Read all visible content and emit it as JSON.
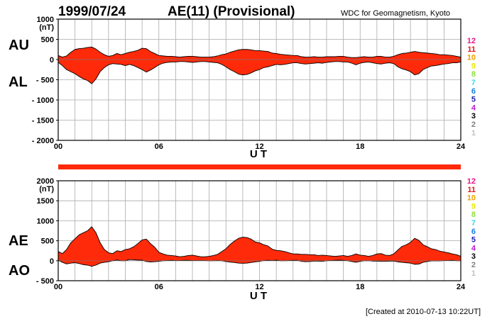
{
  "header": {
    "date": "1999/07/24",
    "title": "AE(11) (Provisional)",
    "source": "WDC for Geomagnetism, Kyoto"
  },
  "footer": {
    "created": "[Created at 2010-07-13 10:22UT]"
  },
  "station_counts": {
    "labels": [
      "12",
      "11",
      "10",
      "9",
      "8",
      "7",
      "6",
      "5",
      "4",
      "3",
      "2",
      "1"
    ],
    "colors": [
      "#e8178a",
      "#e0161a",
      "#f0a000",
      "#e8e800",
      "#90e040",
      "#40d8e8",
      "#1880e0",
      "#2020b0",
      "#c018d0",
      "#000000",
      "#808080",
      "#c0c0c0"
    ]
  },
  "chart_data": [
    {
      "id": "au-al",
      "type": "area",
      "units_label": "(nT)",
      "upper_series_label": "AU",
      "lower_series_label": "AL",
      "xlabel": "U T",
      "xlim": [
        0,
        24
      ],
      "ylim": [
        -2000,
        1000
      ],
      "x_ticks": [
        0,
        6,
        12,
        18,
        24
      ],
      "x_tick_labels": [
        "00",
        "06",
        "12",
        "18",
        "24"
      ],
      "y_ticks": [
        1000,
        500,
        0,
        -500,
        -1000,
        -1500,
        -2000
      ],
      "y_tick_labels": [
        "1000",
        "500",
        "0",
        "- 500",
        "- 1000",
        "- 1500",
        "- 2000"
      ],
      "grid": true,
      "fill_color": "#ff2a0a",
      "time_hours": [
        0,
        0.25,
        0.5,
        0.75,
        1,
        1.25,
        1.5,
        1.75,
        2,
        2.25,
        2.5,
        2.75,
        3,
        3.25,
        3.5,
        3.75,
        4,
        4.25,
        4.5,
        4.75,
        5,
        5.25,
        5.5,
        5.75,
        6,
        6.25,
        6.5,
        6.75,
        7,
        7.25,
        7.5,
        7.75,
        8,
        8.25,
        8.5,
        8.75,
        9,
        9.25,
        9.5,
        9.75,
        10,
        10.25,
        10.5,
        10.75,
        11,
        11.25,
        11.5,
        11.75,
        12,
        12.25,
        12.5,
        12.75,
        13,
        13.25,
        13.5,
        13.75,
        14,
        14.25,
        14.5,
        14.75,
        15,
        15.25,
        15.5,
        15.75,
        16,
        16.25,
        16.5,
        16.75,
        17,
        17.25,
        17.5,
        17.75,
        18,
        18.25,
        18.5,
        18.75,
        19,
        19.25,
        19.5,
        19.75,
        20,
        20.25,
        20.5,
        20.75,
        21,
        21.25,
        21.5,
        21.75,
        22,
        22.25,
        22.5,
        22.75,
        23,
        23.25,
        23.5,
        23.75,
        24
      ],
      "au_nT": [
        100,
        60,
        90,
        180,
        250,
        270,
        280,
        300,
        310,
        260,
        180,
        120,
        80,
        100,
        150,
        120,
        150,
        180,
        200,
        230,
        280,
        270,
        200,
        150,
        100,
        90,
        80,
        80,
        70,
        60,
        70,
        80,
        80,
        70,
        60,
        60,
        60,
        70,
        90,
        120,
        140,
        180,
        210,
        240,
        250,
        250,
        240,
        220,
        220,
        210,
        200,
        160,
        150,
        130,
        120,
        110,
        100,
        100,
        70,
        60,
        60,
        70,
        60,
        60,
        70,
        70,
        70,
        80,
        80,
        60,
        50,
        50,
        60,
        70,
        60,
        60,
        80,
        80,
        60,
        60,
        80,
        120,
        150,
        160,
        180,
        200,
        180,
        170,
        160,
        150,
        140,
        120,
        120,
        110,
        100,
        80,
        60
      ],
      "al_nT": [
        -70,
        -150,
        -250,
        -300,
        -350,
        -420,
        -480,
        -520,
        -600,
        -480,
        -300,
        -200,
        -130,
        -100,
        -110,
        -120,
        -150,
        -120,
        -150,
        -200,
        -250,
        -310,
        -260,
        -200,
        -130,
        -90,
        -70,
        -60,
        -60,
        -50,
        -50,
        -60,
        -70,
        -60,
        -50,
        -50,
        -60,
        -70,
        -80,
        -120,
        -180,
        -250,
        -300,
        -360,
        -380,
        -370,
        -330,
        -280,
        -250,
        -200,
        -180,
        -150,
        -120,
        -130,
        -120,
        -100,
        -80,
        -80,
        -100,
        -110,
        -100,
        -90,
        -80,
        -90,
        -70,
        -60,
        -50,
        -50,
        -60,
        -60,
        -90,
        -130,
        -90,
        -70,
        -60,
        -80,
        -100,
        -110,
        -90,
        -80,
        -100,
        -180,
        -230,
        -260,
        -300,
        -380,
        -350,
        -250,
        -200,
        -160,
        -150,
        -130,
        -110,
        -100,
        -80,
        -80,
        -60
      ]
    },
    {
      "id": "ae-ao",
      "type": "area",
      "units_label": "(nT)",
      "upper_series_label": "AE",
      "lower_series_label": "AO",
      "xlabel": "U T",
      "xlim": [
        0,
        24
      ],
      "ylim": [
        -500,
        2000
      ],
      "x_ticks": [
        0,
        6,
        12,
        18,
        24
      ],
      "x_tick_labels": [
        "00",
        "06",
        "12",
        "18",
        "24"
      ],
      "y_ticks": [
        2000,
        1500,
        1000,
        500,
        0,
        -500
      ],
      "y_tick_labels": [
        "2000",
        "1500",
        "1000",
        "500",
        "0",
        "- 500"
      ],
      "grid": true,
      "fill_color": "#ff2a0a",
      "time_hours": [
        0,
        0.25,
        0.5,
        0.75,
        1,
        1.25,
        1.5,
        1.75,
        2,
        2.25,
        2.5,
        2.75,
        3,
        3.25,
        3.5,
        3.75,
        4,
        4.25,
        4.5,
        4.75,
        5,
        5.25,
        5.5,
        5.75,
        6,
        6.25,
        6.5,
        6.75,
        7,
        7.25,
        7.5,
        7.75,
        8,
        8.25,
        8.5,
        8.75,
        9,
        9.25,
        9.5,
        9.75,
        10,
        10.25,
        10.5,
        10.75,
        11,
        11.25,
        11.5,
        11.75,
        12,
        12.25,
        12.5,
        12.75,
        13,
        13.25,
        13.5,
        13.75,
        14,
        14.25,
        14.5,
        14.75,
        15,
        15.25,
        15.5,
        15.75,
        16,
        16.25,
        16.5,
        16.75,
        17,
        17.25,
        17.5,
        17.75,
        18,
        18.25,
        18.5,
        18.75,
        19,
        19.25,
        19.5,
        19.75,
        20,
        20.25,
        20.5,
        20.75,
        21,
        21.25,
        21.5,
        21.75,
        22,
        22.25,
        22.5,
        22.75,
        23,
        23.25,
        23.5,
        23.75,
        24
      ],
      "ae_nT": [
        230,
        180,
        280,
        450,
        550,
        650,
        700,
        750,
        850,
        700,
        450,
        280,
        200,
        180,
        250,
        230,
        280,
        300,
        350,
        430,
        520,
        540,
        430,
        340,
        210,
        170,
        140,
        130,
        120,
        100,
        110,
        130,
        140,
        120,
        100,
        100,
        110,
        130,
        160,
        230,
        300,
        410,
        490,
        560,
        590,
        580,
        540,
        470,
        450,
        400,
        370,
        290,
        260,
        250,
        230,
        200,
        170,
        170,
        160,
        160,
        150,
        150,
        130,
        140,
        130,
        120,
        110,
        120,
        130,
        110,
        130,
        170,
        140,
        130,
        110,
        130,
        170,
        180,
        140,
        130,
        170,
        270,
        360,
        400,
        460,
        560,
        510,
        400,
        350,
        300,
        280,
        240,
        220,
        200,
        170,
        150,
        110
      ],
      "ao_nT": [
        15,
        -40,
        -80,
        -60,
        -50,
        -70,
        -100,
        -110,
        -140,
        -110,
        -60,
        -40,
        -25,
        0,
        20,
        0,
        0,
        30,
        25,
        15,
        15,
        -20,
        -30,
        -25,
        -15,
        0,
        5,
        10,
        5,
        5,
        10,
        10,
        5,
        5,
        5,
        5,
        0,
        0,
        5,
        0,
        -20,
        -35,
        -45,
        -60,
        -65,
        -60,
        -45,
        -30,
        -15,
        5,
        10,
        5,
        15,
        0,
        0,
        5,
        10,
        10,
        -15,
        -25,
        -20,
        -10,
        -10,
        -15,
        0,
        5,
        10,
        15,
        10,
        0,
        -20,
        -40,
        -15,
        0,
        0,
        -10,
        -10,
        -15,
        -15,
        -10,
        -10,
        -30,
        -40,
        -50,
        -60,
        -90,
        -85,
        -40,
        -20,
        -5,
        -5,
        -5,
        5,
        5,
        10,
        0,
        0
      ]
    }
  ]
}
